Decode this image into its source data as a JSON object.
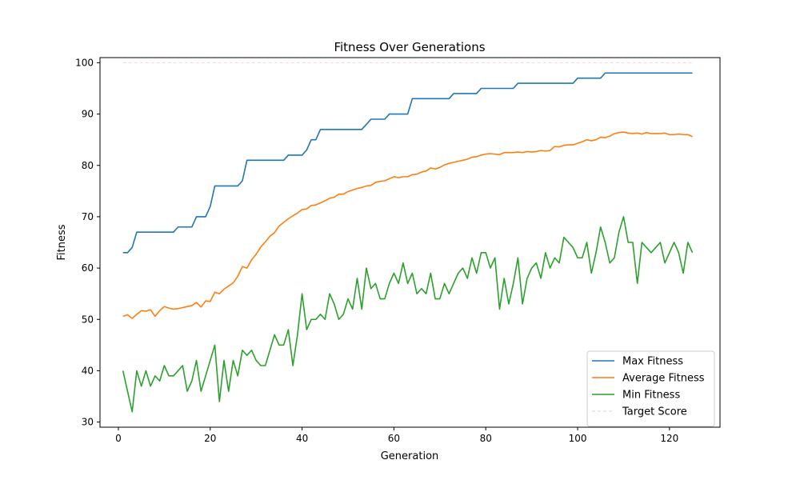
{
  "chart_data": {
    "type": "line",
    "title": "Fitness Over Generations",
    "xlabel": "Generation",
    "ylabel": "Fitness",
    "xlim": [
      -4,
      131
    ],
    "ylim": [
      29,
      101
    ],
    "xticks": [
      0,
      20,
      40,
      60,
      80,
      100,
      120
    ],
    "yticks": [
      30,
      40,
      50,
      60,
      70,
      80,
      90,
      100
    ],
    "grid": false,
    "legend_position": "lower-right",
    "x": [
      1,
      2,
      3,
      4,
      5,
      6,
      7,
      8,
      9,
      10,
      11,
      12,
      13,
      14,
      15,
      16,
      17,
      18,
      19,
      20,
      21,
      22,
      23,
      24,
      25,
      26,
      27,
      28,
      29,
      30,
      31,
      32,
      33,
      34,
      35,
      36,
      37,
      38,
      39,
      40,
      41,
      42,
      43,
      44,
      45,
      46,
      47,
      48,
      49,
      50,
      51,
      52,
      53,
      54,
      55,
      56,
      57,
      58,
      59,
      60,
      61,
      62,
      63,
      64,
      65,
      66,
      67,
      68,
      69,
      70,
      71,
      72,
      73,
      74,
      75,
      76,
      77,
      78,
      79,
      80,
      81,
      82,
      83,
      84,
      85,
      86,
      87,
      88,
      89,
      90,
      91,
      92,
      93,
      94,
      95,
      96,
      97,
      98,
      99,
      100,
      101,
      102,
      103,
      104,
      105,
      106,
      107,
      108,
      109,
      110,
      111,
      112,
      113,
      114,
      115,
      116,
      117,
      118,
      119,
      120,
      121,
      122,
      123,
      124,
      125
    ],
    "series": [
      {
        "name": "Max Fitness",
        "color": "#1f77b4",
        "values": [
          63,
          63,
          64,
          67,
          67,
          67,
          67,
          67,
          67,
          67,
          67,
          67,
          68,
          68,
          68,
          68,
          70,
          70,
          70,
          72,
          76,
          76,
          76,
          76,
          76,
          76,
          77,
          81,
          81,
          81,
          81,
          81,
          81,
          81,
          81,
          81,
          82,
          82,
          82,
          82,
          83,
          85,
          85,
          87,
          87,
          87,
          87,
          87,
          87,
          87,
          87,
          87,
          87,
          88,
          89,
          89,
          89,
          89,
          90,
          90,
          90,
          90,
          90,
          93,
          93,
          93,
          93,
          93,
          93,
          93,
          93,
          93,
          94,
          94,
          94,
          94,
          94,
          94,
          95,
          95,
          95,
          95,
          95,
          95,
          95,
          95,
          96,
          96,
          96,
          96,
          96,
          96,
          96,
          96,
          96,
          96,
          96,
          96,
          96,
          97,
          97,
          97,
          97,
          97,
          97,
          98,
          98,
          98,
          98,
          98,
          98,
          98,
          98,
          98,
          98,
          98,
          98,
          98,
          98,
          98,
          98,
          98,
          98,
          98,
          98
        ]
      },
      {
        "name": "Average Fitness",
        "color": "#ff7f0e",
        "values": [
          50.6,
          50.9,
          50.2,
          51.0,
          51.7,
          51.6,
          51.9,
          50.6,
          51.7,
          52.5,
          52.2,
          52.0,
          52.1,
          52.3,
          52.5,
          52.7,
          53.3,
          52.4,
          53.6,
          53.5,
          55.3,
          55.0,
          55.9,
          56.5,
          57.1,
          58.4,
          60.3,
          60.0,
          61.6,
          62.7,
          64.1,
          65.1,
          66.2,
          66.9,
          68.2,
          68.9,
          69.6,
          70.2,
          70.7,
          71.4,
          71.5,
          72.2,
          72.3,
          72.7,
          73.1,
          73.6,
          73.8,
          74.4,
          74.4,
          74.9,
          75.2,
          75.5,
          75.7,
          76.0,
          76.1,
          76.7,
          76.9,
          77.0,
          77.4,
          77.8,
          77.6,
          77.8,
          77.8,
          78.2,
          78.3,
          78.7,
          78.9,
          79.5,
          79.3,
          79.6,
          80.1,
          80.4,
          80.6,
          80.8,
          81.0,
          81.2,
          81.6,
          81.7,
          82.0,
          82.2,
          82.3,
          82.2,
          82.1,
          82.5,
          82.5,
          82.5,
          82.6,
          82.5,
          82.7,
          82.6,
          82.7,
          82.9,
          82.8,
          82.9,
          83.7,
          83.6,
          83.9,
          84.0,
          84.0,
          84.3,
          84.6,
          85.0,
          84.8,
          85.0,
          85.5,
          85.4,
          85.7,
          86.2,
          86.4,
          86.5,
          86.3,
          86.2,
          86.3,
          86.1,
          86.4,
          86.2,
          86.2,
          86.2,
          86.3,
          86.0,
          86.0,
          86.1,
          86.0,
          86.0,
          85.6
        ]
      },
      {
        "name": "Min Fitness",
        "color": "#2ca02c",
        "values": [
          40,
          36,
          32,
          40,
          37,
          40,
          37,
          39,
          38,
          41,
          39,
          39,
          40,
          41,
          36,
          38,
          42,
          36,
          39,
          42,
          45,
          34,
          42,
          36,
          42,
          39,
          44,
          43,
          44,
          42,
          41,
          41,
          44,
          47,
          45,
          45,
          48,
          41,
          47,
          55,
          48,
          50,
          50,
          51,
          50,
          55,
          53,
          50,
          51,
          54,
          52,
          58,
          52,
          60,
          56,
          57,
          54,
          54,
          57,
          59,
          57,
          61,
          57,
          59,
          55,
          56,
          55,
          59,
          54,
          54,
          57,
          55,
          57,
          59,
          60,
          58,
          62,
          59,
          63,
          63,
          60,
          62,
          52,
          58,
          53,
          57,
          62,
          53,
          58,
          60,
          61,
          58,
          63,
          60,
          62,
          61,
          66,
          65,
          64,
          62,
          62,
          65,
          59,
          63,
          68,
          65,
          61,
          62,
          67,
          70,
          65,
          65,
          57,
          65,
          64,
          63,
          64,
          65,
          61,
          63,
          65,
          63,
          59,
          65,
          63
        ]
      },
      {
        "name": "Target Score",
        "color": "#d62728",
        "dashed": true,
        "values": [
          100,
          100,
          100,
          100,
          100,
          100,
          100,
          100,
          100,
          100,
          100,
          100,
          100,
          100,
          100,
          100,
          100,
          100,
          100,
          100,
          100,
          100,
          100,
          100,
          100,
          100,
          100,
          100,
          100,
          100,
          100,
          100,
          100,
          100,
          100,
          100,
          100,
          100,
          100,
          100,
          100,
          100,
          100,
          100,
          100,
          100,
          100,
          100,
          100,
          100,
          100,
          100,
          100,
          100,
          100,
          100,
          100,
          100,
          100,
          100,
          100,
          100,
          100,
          100,
          100,
          100,
          100,
          100,
          100,
          100,
          100,
          100,
          100,
          100,
          100,
          100,
          100,
          100,
          100,
          100,
          100,
          100,
          100,
          100,
          100,
          100,
          100,
          100,
          100,
          100,
          100,
          100,
          100,
          100,
          100,
          100,
          100,
          100,
          100,
          100,
          100,
          100,
          100,
          100,
          100,
          100,
          100,
          100,
          100,
          100,
          100,
          100,
          100,
          100,
          100,
          100,
          100,
          100,
          100,
          100,
          100,
          100,
          100,
          100,
          100
        ]
      }
    ]
  }
}
